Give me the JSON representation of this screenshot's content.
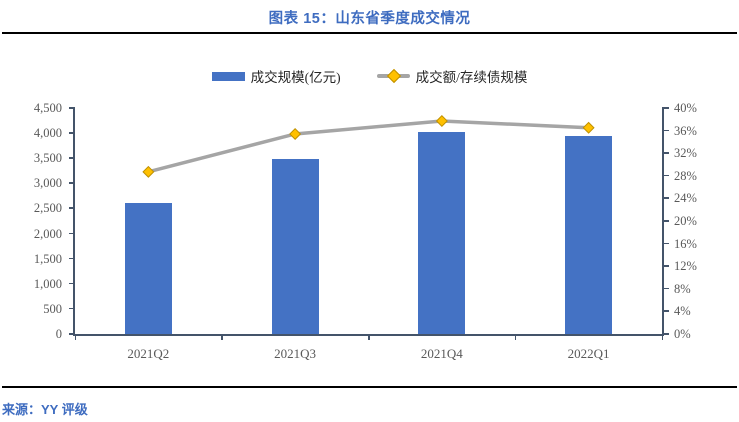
{
  "header": {
    "title": "图表 15：山东省季度成交情况"
  },
  "source": {
    "label": "来源：YY 评级"
  },
  "chart_data": {
    "type": "bar",
    "subtype": "bar-with-line-overlay",
    "title": "图表 15：山东省季度成交情况",
    "categories": [
      "2021Q2",
      "2021Q3",
      "2021Q4",
      "2022Q1"
    ],
    "series": [
      {
        "name": "成交规模(亿元)",
        "type": "bar",
        "axis": "left",
        "values": [
          2600,
          3480,
          4020,
          3940
        ]
      },
      {
        "name": "成交额/存续债规模",
        "type": "line",
        "axis": "right",
        "marker": "diamond",
        "values": [
          28.7,
          35.4,
          37.7,
          36.5
        ],
        "unit": "%"
      }
    ],
    "left_axis": {
      "min": 0,
      "max": 4500,
      "step": 500,
      "tick_labels": [
        "0",
        "500",
        "1,000",
        "1,500",
        "2,000",
        "2,500",
        "3,000",
        "3,500",
        "4,000",
        "4,500"
      ]
    },
    "right_axis": {
      "min": 0,
      "max": 40,
      "step": 4,
      "tick_labels": [
        "0%",
        "4%",
        "8%",
        "12%",
        "16%",
        "20%",
        "24%",
        "28%",
        "32%",
        "36%",
        "40%"
      ]
    },
    "grid": false,
    "legend_position": "top-center",
    "colors": {
      "bar": "#4472C4",
      "line": "#A5A5A5",
      "marker_fill": "#FFC000",
      "marker_border": "#BF9000",
      "axis": "#44546A",
      "tick_label": "#595959",
      "title": "#3E6CC0"
    }
  }
}
